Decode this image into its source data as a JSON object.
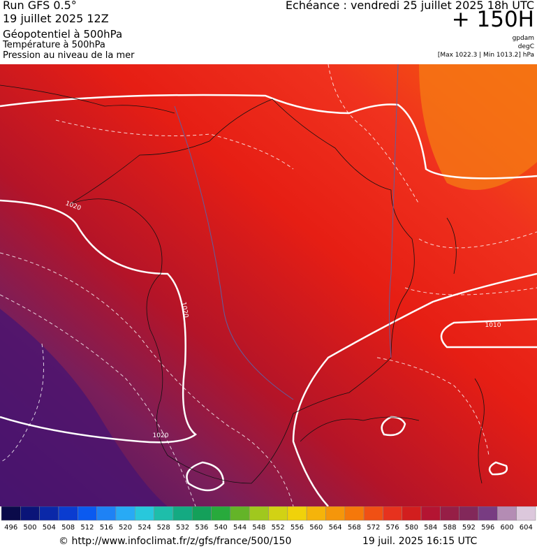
{
  "header": {
    "run": "Run GFS 0.5°",
    "date": "19 juillet 2025 12Z",
    "field1": "Géopotentiel à 500hPa",
    "field2": "Température à 500hPa",
    "field3": "Pression au niveau de la mer",
    "echeance": "Echéance : vendredi 25 juillet 2025 18h UTC",
    "lead": "+ 150H",
    "unit1": "gpdam",
    "unit2": "degC",
    "pressure_range": "[Max 1022.3 | Min 1013.2] hPa"
  },
  "map": {
    "contour_labels": [
      "1020",
      "1020",
      "1020",
      "1010"
    ]
  },
  "colorbar": {
    "values": [
      496,
      500,
      504,
      508,
      512,
      516,
      520,
      524,
      528,
      532,
      536,
      540,
      544,
      548,
      552,
      556,
      560,
      564,
      568,
      572,
      576,
      580,
      584,
      588,
      592,
      596,
      600,
      604
    ],
    "colors": [
      "#0a0a4a",
      "#0a1478",
      "#0a28a8",
      "#0a3cd0",
      "#0a5af0",
      "#1e82f5",
      "#28aaf5",
      "#28c8dc",
      "#1ebeaa",
      "#14aa82",
      "#14a05a",
      "#28aa3c",
      "#64b428",
      "#a0c81e",
      "#d2d214",
      "#f0d20a",
      "#f5b40a",
      "#f5960a",
      "#f5780a",
      "#f05014",
      "#e6321e",
      "#d21e1e",
      "#b41432",
      "#961e46",
      "#82285a",
      "#783c82",
      "#b48cb4",
      "#dcc8dc"
    ]
  },
  "footer": {
    "source": "© http://www.infoclimat.fr/z/gfs/france/500/150",
    "generated": "19 juil. 2025 16:15 UTC"
  }
}
